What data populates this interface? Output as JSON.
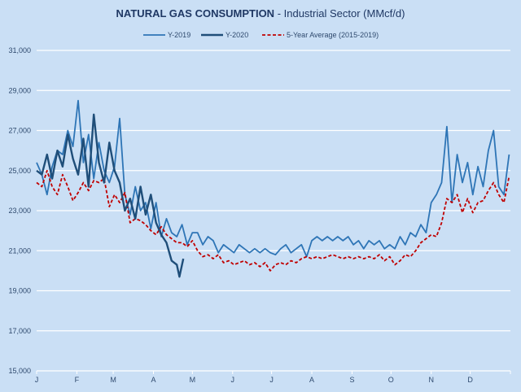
{
  "chart_data": {
    "type": "line",
    "title_bold": "NATURAL GAS CONSUMPTION",
    "title_rest": " - Industrial Sector (MMcf/d)",
    "xlabel": "",
    "ylabel": "",
    "x_tick_labels": [
      "J",
      "F",
      "M",
      "A",
      "M",
      "J",
      "J",
      "A",
      "S",
      "O",
      "N",
      "D"
    ],
    "y_ticks": [
      15000,
      17000,
      19000,
      21000,
      23000,
      25000,
      27000,
      29000,
      31000
    ],
    "y_tick_labels": [
      "15,000",
      "17,000",
      "19,000",
      "21,000",
      "23,000",
      "25,000",
      "27,000",
      "29,000",
      "31,000"
    ],
    "ylim": [
      15000,
      31000
    ],
    "xlim": [
      "01-01",
      "12-31"
    ],
    "grid": "horizontal",
    "legend_position": "top",
    "colors": {
      "background": "#cadff5",
      "grid": "#ffffff",
      "y2019": "#2e75b6",
      "y2020": "#1f4e79",
      "avg": "#c00000"
    },
    "series": [
      {
        "name": "Y-2019",
        "style": "solid",
        "dates": [
          "01-01",
          "01-05",
          "01-09",
          "01-13",
          "01-17",
          "01-21",
          "01-25",
          "01-29",
          "02-02",
          "02-06",
          "02-10",
          "02-14",
          "02-18",
          "02-22",
          "02-26",
          "03-02",
          "03-06",
          "03-10",
          "03-14",
          "03-18",
          "03-22",
          "03-26",
          "03-30",
          "04-03",
          "04-07",
          "04-11",
          "04-15",
          "04-19",
          "04-23",
          "04-27",
          "05-01",
          "05-05",
          "05-09",
          "05-13",
          "05-17",
          "05-21",
          "05-25",
          "05-29",
          "06-02",
          "06-06",
          "06-10",
          "06-14",
          "06-18",
          "06-22",
          "06-26",
          "06-30",
          "07-04",
          "07-08",
          "07-12",
          "07-16",
          "07-20",
          "07-24",
          "07-28",
          "08-01",
          "08-05",
          "08-09",
          "08-13",
          "08-17",
          "08-21",
          "08-25",
          "08-29",
          "09-02",
          "09-06",
          "09-10",
          "09-14",
          "09-18",
          "09-22",
          "09-26",
          "09-30",
          "10-04",
          "10-08",
          "10-12",
          "10-16",
          "10-20",
          "10-24",
          "10-28",
          "11-01",
          "11-05",
          "11-09",
          "11-13",
          "11-17",
          "11-21",
          "11-25",
          "11-29",
          "12-03",
          "12-07",
          "12-11",
          "12-15",
          "12-19",
          "12-23",
          "12-27",
          "12-31"
        ],
        "values": [
          25400,
          24800,
          23800,
          25200,
          26000,
          25800,
          27000,
          26200,
          28500,
          25400,
          26800,
          24600,
          26400,
          25000,
          24400,
          25200,
          27600,
          23800,
          22800,
          24200,
          23000,
          23400,
          22100,
          23400,
          21700,
          22600,
          21900,
          21700,
          22300,
          21300,
          21900,
          21900,
          21300,
          21700,
          21500,
          20900,
          21300,
          21100,
          20900,
          21300,
          21100,
          20900,
          21100,
          20900,
          21100,
          20900,
          20800,
          21100,
          21300,
          20900,
          21100,
          21300,
          20700,
          21500,
          21700,
          21500,
          21700,
          21500,
          21700,
          21500,
          21700,
          21300,
          21500,
          21100,
          21500,
          21300,
          21500,
          21100,
          21300,
          21100,
          21700,
          21300,
          21900,
          21700,
          22300,
          21900,
          23400,
          23800,
          24400,
          27200,
          23400,
          25800,
          24400,
          25400,
          23800,
          25200,
          24200,
          26000,
          27000,
          24200,
          23800,
          25800
        ]
      },
      {
        "name": "Y-2020",
        "style": "solid",
        "dates": [
          "01-01",
          "01-05",
          "01-09",
          "01-13",
          "01-17",
          "01-21",
          "01-25",
          "01-29",
          "02-02",
          "02-06",
          "02-10",
          "02-14",
          "02-18",
          "02-22",
          "02-26",
          "03-02",
          "03-06",
          "03-10",
          "03-14",
          "03-18",
          "03-22",
          "03-26",
          "03-30",
          "04-03",
          "04-07",
          "04-11",
          "04-15",
          "04-19",
          "04-21",
          "04-24"
        ],
        "values": [
          25000,
          24800,
          25800,
          24600,
          26000,
          25200,
          26800,
          25600,
          24800,
          26600,
          24200,
          27800,
          25400,
          24400,
          26400,
          25000,
          24400,
          23000,
          23600,
          22600,
          24200,
          22800,
          23800,
          22400,
          21800,
          21400,
          20500,
          20300,
          19700,
          20600
        ]
      },
      {
        "name": "5-Year Average (2015-2019)",
        "style": "dashed",
        "dates": [
          "01-01",
          "01-05",
          "01-09",
          "01-13",
          "01-17",
          "01-21",
          "01-25",
          "01-29",
          "02-02",
          "02-06",
          "02-10",
          "02-14",
          "02-18",
          "02-22",
          "02-26",
          "03-02",
          "03-06",
          "03-10",
          "03-14",
          "03-18",
          "03-22",
          "03-26",
          "03-30",
          "04-03",
          "04-07",
          "04-11",
          "04-15",
          "04-19",
          "04-23",
          "04-27",
          "05-01",
          "05-05",
          "05-09",
          "05-13",
          "05-17",
          "05-21",
          "05-25",
          "05-29",
          "06-02",
          "06-06",
          "06-10",
          "06-14",
          "06-18",
          "06-22",
          "06-26",
          "06-30",
          "07-04",
          "07-08",
          "07-12",
          "07-16",
          "07-20",
          "07-24",
          "07-28",
          "08-01",
          "08-05",
          "08-09",
          "08-13",
          "08-17",
          "08-21",
          "08-25",
          "08-29",
          "09-02",
          "09-06",
          "09-10",
          "09-14",
          "09-18",
          "09-22",
          "09-26",
          "09-30",
          "10-04",
          "10-08",
          "10-12",
          "10-16",
          "10-20",
          "10-24",
          "10-28",
          "11-01",
          "11-05",
          "11-09",
          "11-13",
          "11-17",
          "11-21",
          "11-25",
          "11-29",
          "12-03",
          "12-07",
          "12-11",
          "12-15",
          "12-19",
          "12-23",
          "12-27",
          "12-31"
        ],
        "values": [
          24400,
          24200,
          25000,
          24200,
          23800,
          24800,
          24200,
          23500,
          23900,
          24400,
          24000,
          24500,
          24400,
          24600,
          23200,
          23800,
          23400,
          23900,
          22400,
          22600,
          22500,
          22300,
          22000,
          21800,
          22200,
          21800,
          21600,
          21400,
          21400,
          21200,
          21500,
          21000,
          20700,
          20800,
          20600,
          20800,
          20400,
          20500,
          20300,
          20400,
          20500,
          20300,
          20400,
          20200,
          20400,
          20000,
          20300,
          20400,
          20300,
          20500,
          20400,
          20600,
          20700,
          20600,
          20700,
          20600,
          20700,
          20800,
          20700,
          20600,
          20700,
          20600,
          20700,
          20600,
          20700,
          20600,
          20800,
          20500,
          20700,
          20300,
          20500,
          20800,
          20700,
          21000,
          21400,
          21600,
          21800,
          21700,
          22400,
          23600,
          23400,
          23800,
          22900,
          23600,
          22900,
          23400,
          23500,
          24000,
          24400,
          23800,
          23400,
          24700
        ]
      }
    ]
  }
}
